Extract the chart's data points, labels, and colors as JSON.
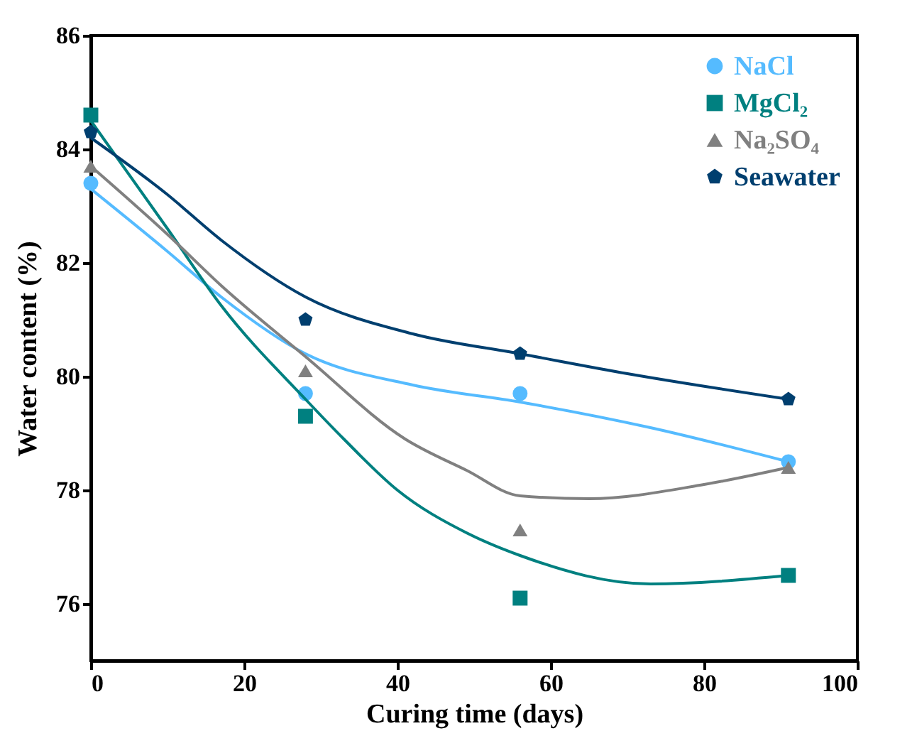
{
  "chart_data": {
    "type": "scatter",
    "xlabel": "Curing time (days)",
    "ylabel": "Water content (%)",
    "xlim": [
      0,
      100
    ],
    "xticks": [
      0,
      20,
      40,
      60,
      80,
      100
    ],
    "ylim": [
      75,
      86
    ],
    "yticks": [
      76,
      78,
      80,
      82,
      84,
      86
    ],
    "grid": false,
    "legend": "top right",
    "series": [
      {
        "name": "NaCl",
        "marker": "circle",
        "color": "#55bbff",
        "x": [
          0,
          28,
          56,
          91
        ],
        "values": [
          83.4,
          79.7,
          79.7,
          78.5
        ]
      },
      {
        "name": "MgCl₂",
        "marker": "square",
        "color": "#008080",
        "x": [
          0,
          28,
          56,
          91
        ],
        "values": [
          84.6,
          79.3,
          76.1,
          76.5
        ]
      },
      {
        "name": "Na₂SO₄",
        "marker": "triangle",
        "color": "#808080",
        "x": [
          0,
          28,
          56,
          91
        ],
        "values": [
          83.7,
          80.1,
          77.3,
          78.4
        ]
      },
      {
        "name": "Seawater",
        "color": "#003f6f",
        "x": [
          0,
          28,
          56,
          91
        ],
        "values": [
          84.3,
          81.0,
          80.4,
          79.6
        ]
      },
      {
        "type": "line",
        "marker": "none",
        "color": "#55bbff",
        "x": [
          0,
          10,
          17,
          28,
          42,
          56,
          73,
          91
        ],
        "values": [
          83.3,
          82.2,
          81.4,
          80.4,
          79.85,
          79.55,
          79.1,
          78.5
        ]
      },
      {
        "type": "line",
        "marker": "none",
        "color": "#008080",
        "x": [
          0,
          10,
          17,
          28,
          33,
          40,
          49,
          56,
          73,
          91
        ],
        "values": [
          84.5,
          82.6,
          81.25,
          79.6,
          78.9,
          78.0,
          77.25,
          76.85,
          76.35,
          76.5
        ]
      },
      {
        "type": "line",
        "marker": "none",
        "color": "#808080",
        "x": [
          0,
          10,
          17,
          28,
          41,
          49,
          56,
          65,
          80,
          91
        ],
        "values": [
          83.7,
          82.5,
          81.6,
          80.35,
          78.9,
          78.35,
          77.9,
          77.85,
          78.1,
          78.4
        ]
      },
      {
        "type": "line",
        "marker": "none",
        "color": "#003f6f",
        "x": [
          0,
          10,
          17,
          28,
          42,
          56,
          70,
          91
        ],
        "values": [
          84.2,
          83.2,
          82.4,
          81.4,
          80.75,
          80.4,
          80.05,
          79.6
        ]
      }
    ]
  }
}
